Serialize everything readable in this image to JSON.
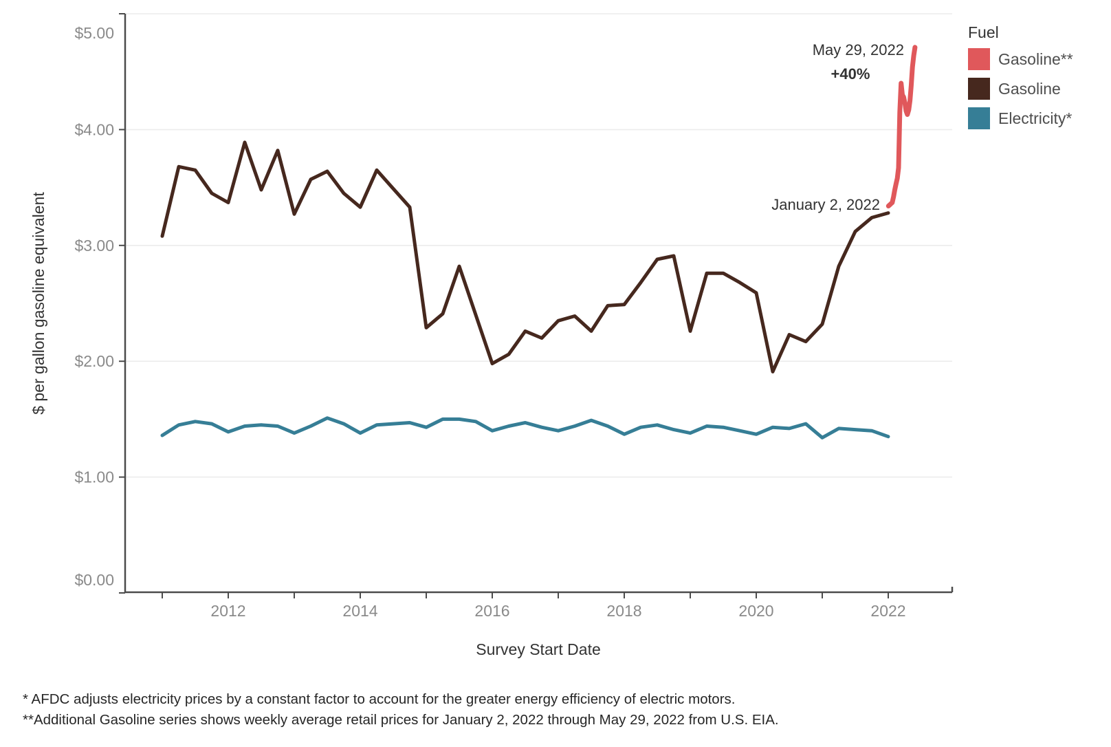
{
  "chart_data": {
    "type": "line",
    "title": "",
    "xlabel": "Survey Start Date",
    "ylabel": "$ per gallon gasoline equivalent",
    "xlim": [
      2010.45,
      2022.97
    ],
    "ylim": [
      0,
      5
    ],
    "grid": "horizontal",
    "legend_position": "top-right",
    "legend": {
      "title": "Fuel",
      "items": [
        {
          "label": "Gasoline**",
          "color": "#e0585b"
        },
        {
          "label": "Gasoline",
          "color": "#46281e"
        },
        {
          "label": "Electricity*",
          "color": "#367e96"
        }
      ]
    },
    "y_ticks": [
      {
        "value": 0,
        "label": "$0.00"
      },
      {
        "value": 1,
        "label": "$1.00"
      },
      {
        "value": 2,
        "label": "$2.00"
      },
      {
        "value": 3,
        "label": "$3.00"
      },
      {
        "value": 4,
        "label": "$4.00"
      },
      {
        "value": 5,
        "label": "$5.00"
      }
    ],
    "x_ticks": {
      "tick_years": [
        2011,
        2012,
        2013,
        2014,
        2015,
        2016,
        2017,
        2018,
        2019,
        2020,
        2021,
        2022
      ],
      "label_years": [
        "2012",
        "2014",
        "2016",
        "2018",
        "2020",
        "2022"
      ]
    },
    "series": [
      {
        "name": "Electricity*",
        "color": "#367e96",
        "width": 5,
        "points": [
          [
            2011.0,
            1.36
          ],
          [
            2011.25,
            1.45
          ],
          [
            2011.5,
            1.48
          ],
          [
            2011.75,
            1.46
          ],
          [
            2012.0,
            1.39
          ],
          [
            2012.25,
            1.44
          ],
          [
            2012.5,
            1.45
          ],
          [
            2012.75,
            1.44
          ],
          [
            2013.0,
            1.38
          ],
          [
            2013.25,
            1.44
          ],
          [
            2013.5,
            1.51
          ],
          [
            2013.75,
            1.46
          ],
          [
            2014.0,
            1.38
          ],
          [
            2014.25,
            1.45
          ],
          [
            2014.5,
            1.46
          ],
          [
            2014.75,
            1.47
          ],
          [
            2015.0,
            1.43
          ],
          [
            2015.25,
            1.5
          ],
          [
            2015.5,
            1.5
          ],
          [
            2015.75,
            1.48
          ],
          [
            2016.0,
            1.4
          ],
          [
            2016.25,
            1.44
          ],
          [
            2016.5,
            1.47
          ],
          [
            2016.75,
            1.43
          ],
          [
            2017.0,
            1.4
          ],
          [
            2017.25,
            1.44
          ],
          [
            2017.5,
            1.49
          ],
          [
            2017.75,
            1.44
          ],
          [
            2018.0,
            1.37
          ],
          [
            2018.25,
            1.43
          ],
          [
            2018.5,
            1.45
          ],
          [
            2018.75,
            1.41
          ],
          [
            2019.0,
            1.38
          ],
          [
            2019.25,
            1.44
          ],
          [
            2019.5,
            1.43
          ],
          [
            2019.75,
            1.4
          ],
          [
            2020.0,
            1.37
          ],
          [
            2020.25,
            1.43
          ],
          [
            2020.5,
            1.42
          ],
          [
            2020.75,
            1.46
          ],
          [
            2021.0,
            1.34
          ],
          [
            2021.25,
            1.42
          ],
          [
            2021.5,
            1.41
          ],
          [
            2021.75,
            1.4
          ],
          [
            2022.0,
            1.35
          ]
        ]
      },
      {
        "name": "Gasoline",
        "color": "#46281e",
        "width": 5,
        "points": [
          [
            2011.0,
            3.08
          ],
          [
            2011.25,
            3.68
          ],
          [
            2011.5,
            3.65
          ],
          [
            2011.75,
            3.45
          ],
          [
            2012.0,
            3.37
          ],
          [
            2012.25,
            3.89
          ],
          [
            2012.5,
            3.48
          ],
          [
            2012.75,
            3.82
          ],
          [
            2013.0,
            3.27
          ],
          [
            2013.25,
            3.57
          ],
          [
            2013.5,
            3.64
          ],
          [
            2013.75,
            3.45
          ],
          [
            2014.0,
            3.33
          ],
          [
            2014.25,
            3.65
          ],
          [
            2014.5,
            3.49
          ],
          [
            2014.75,
            3.33
          ],
          [
            2015.0,
            2.29
          ],
          [
            2015.25,
            2.41
          ],
          [
            2015.5,
            2.82
          ],
          [
            2015.75,
            2.4
          ],
          [
            2016.0,
            1.98
          ],
          [
            2016.25,
            2.06
          ],
          [
            2016.5,
            2.26
          ],
          [
            2016.75,
            2.2
          ],
          [
            2017.0,
            2.35
          ],
          [
            2017.25,
            2.39
          ],
          [
            2017.5,
            2.26
          ],
          [
            2017.75,
            2.48
          ],
          [
            2018.0,
            2.49
          ],
          [
            2018.25,
            2.68
          ],
          [
            2018.5,
            2.88
          ],
          [
            2018.75,
            2.91
          ],
          [
            2019.0,
            2.26
          ],
          [
            2019.25,
            2.76
          ],
          [
            2019.5,
            2.76
          ],
          [
            2019.75,
            2.68
          ],
          [
            2020.0,
            2.59
          ],
          [
            2020.25,
            1.91
          ],
          [
            2020.5,
            2.23
          ],
          [
            2020.75,
            2.17
          ],
          [
            2021.0,
            2.32
          ],
          [
            2021.25,
            2.82
          ],
          [
            2021.5,
            3.12
          ],
          [
            2021.75,
            3.24
          ],
          [
            2022.0,
            3.28
          ]
        ]
      },
      {
        "name": "Gasoline**",
        "color": "#e0585b",
        "width": 7,
        "points": [
          [
            2022.003,
            3.34
          ],
          [
            2022.022,
            3.35
          ],
          [
            2022.041,
            3.36
          ],
          [
            2022.06,
            3.37
          ],
          [
            2022.08,
            3.42
          ],
          [
            2022.099,
            3.48
          ],
          [
            2022.118,
            3.53
          ],
          [
            2022.137,
            3.58
          ],
          [
            2022.156,
            3.67
          ],
          [
            2022.175,
            4.15
          ],
          [
            2022.195,
            4.4
          ],
          [
            2022.214,
            4.3
          ],
          [
            2022.233,
            4.28
          ],
          [
            2022.252,
            4.23
          ],
          [
            2022.271,
            4.16
          ],
          [
            2022.29,
            4.13
          ],
          [
            2022.31,
            4.17
          ],
          [
            2022.329,
            4.25
          ],
          [
            2022.348,
            4.38
          ],
          [
            2022.367,
            4.54
          ],
          [
            2022.386,
            4.64
          ],
          [
            2022.405,
            4.71
          ]
        ]
      }
    ],
    "annotations": [
      {
        "text": "May 29, 2022"
      },
      {
        "text": "+40%"
      },
      {
        "text": "January 2, 2022"
      }
    ]
  },
  "footnotes": [
    "* AFDC adjusts electricity prices by a constant factor to account for the greater energy efficiency of electric motors.",
    "**Additional Gasoline series shows weekly average retail prices for January 2, 2022 through May 29, 2022 from U.S. EIA."
  ]
}
